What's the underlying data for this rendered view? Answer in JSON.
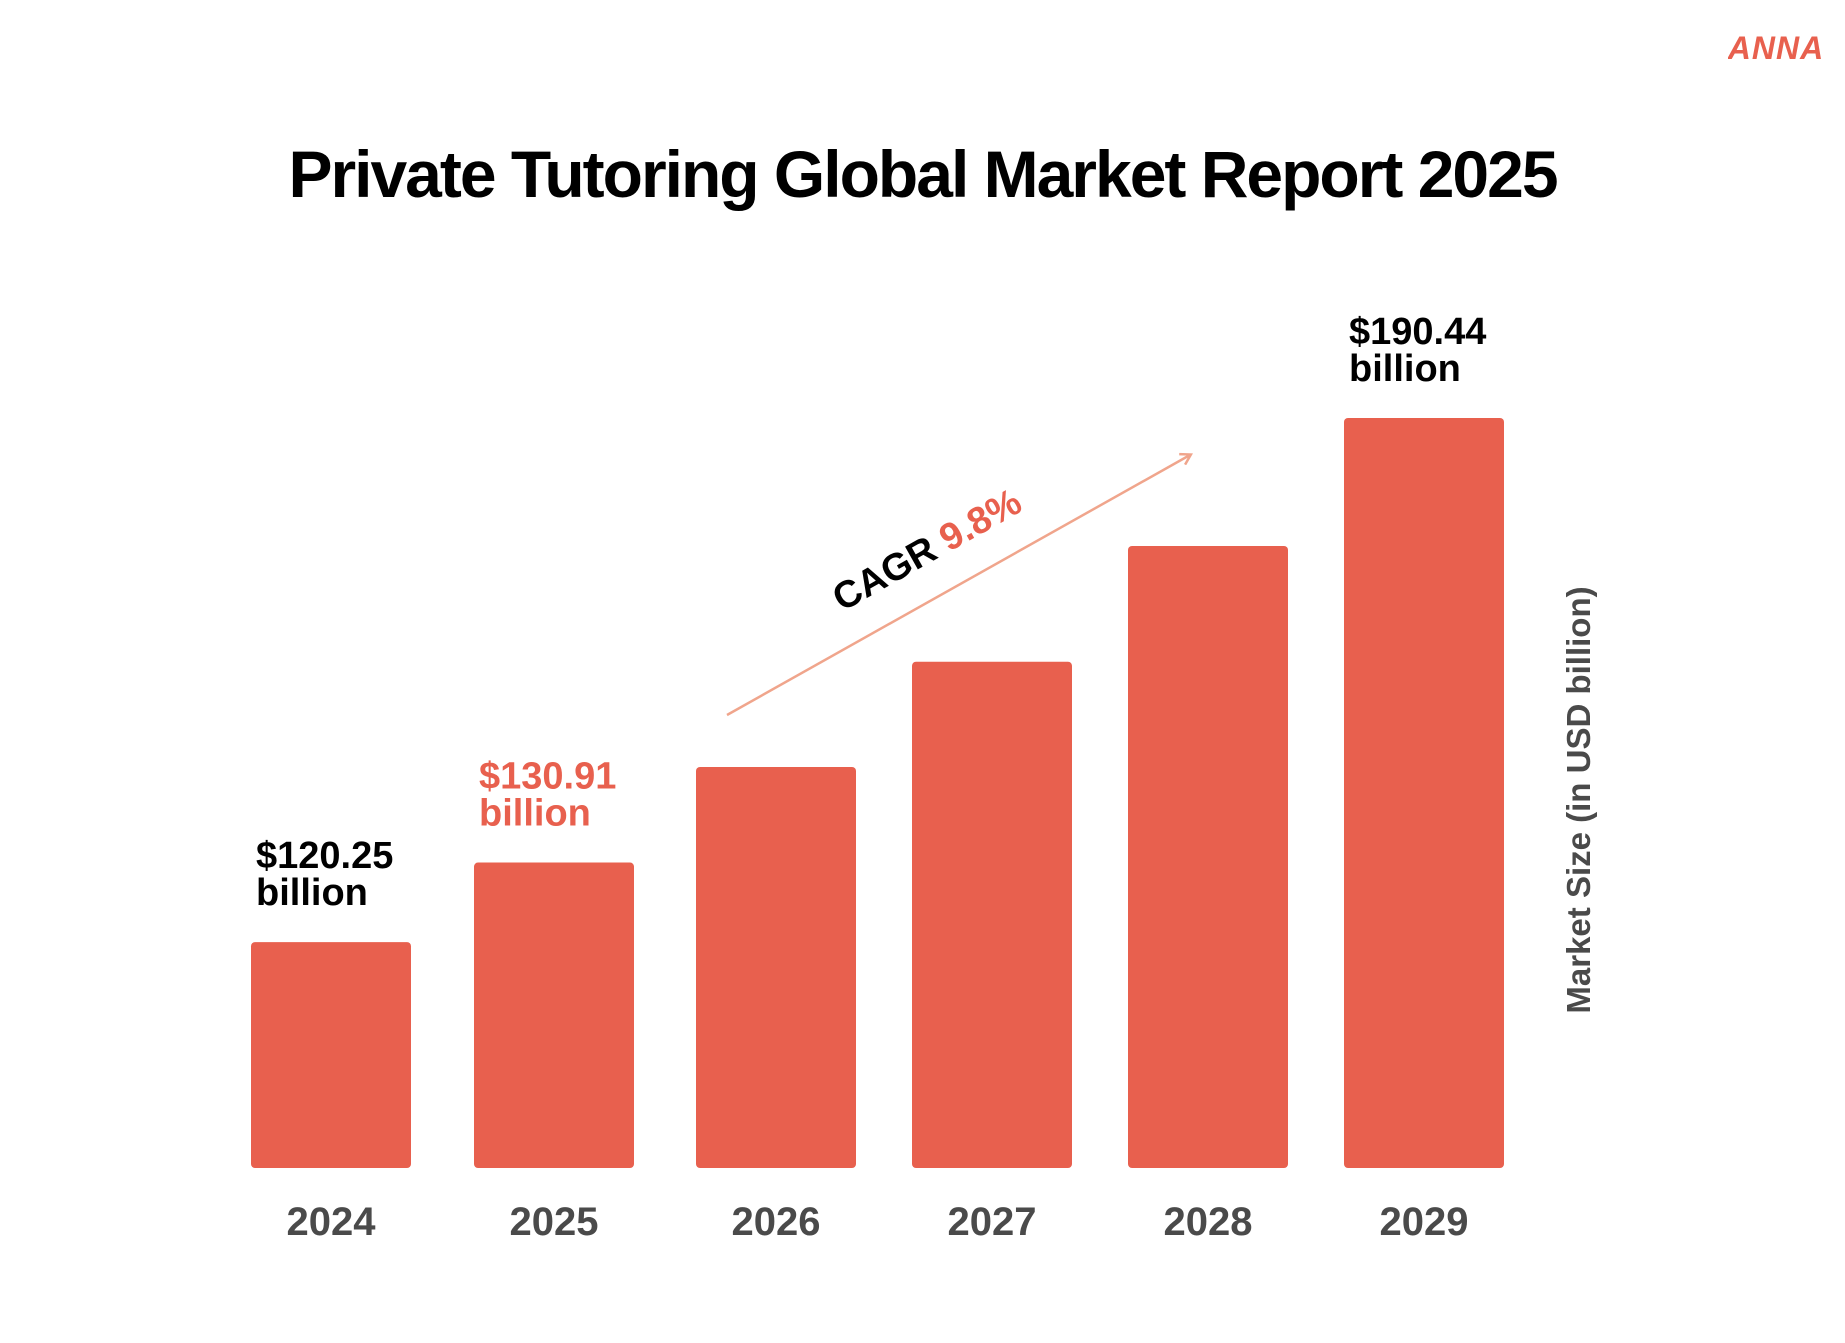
{
  "brand": {
    "logo_text": "ANNA",
    "color": "#E8604E"
  },
  "chart_data": {
    "type": "bar",
    "title": "Private Tutoring Global Market Report 2025",
    "categories": [
      "2024",
      "2025",
      "2026",
      "2027",
      "2028",
      "2029"
    ],
    "values": [
      120.25,
      130.91,
      143.7,
      157.8,
      173.3,
      190.44
    ],
    "value_labels": [
      [
        "$120.25",
        "billion"
      ],
      [
        "$130.91",
        "billion"
      ],
      null,
      null,
      null,
      [
        "$190.44",
        "billion"
      ]
    ],
    "highlight_label_index": 1,
    "ylabel": "Market Size (in USD billion)",
    "ylabel_position": "right",
    "ylim": [
      90,
      195
    ],
    "grid": false,
    "annotation": {
      "text": "CAGR",
      "value": "9.8%"
    },
    "colors": {
      "bar": "#E8604E",
      "highlight_text": "#E8604E",
      "label_text": "#000000",
      "tick_text": "#4A4A4A",
      "arrow": "#F0A58C",
      "ylabel_text": "#4A4A4A"
    }
  }
}
